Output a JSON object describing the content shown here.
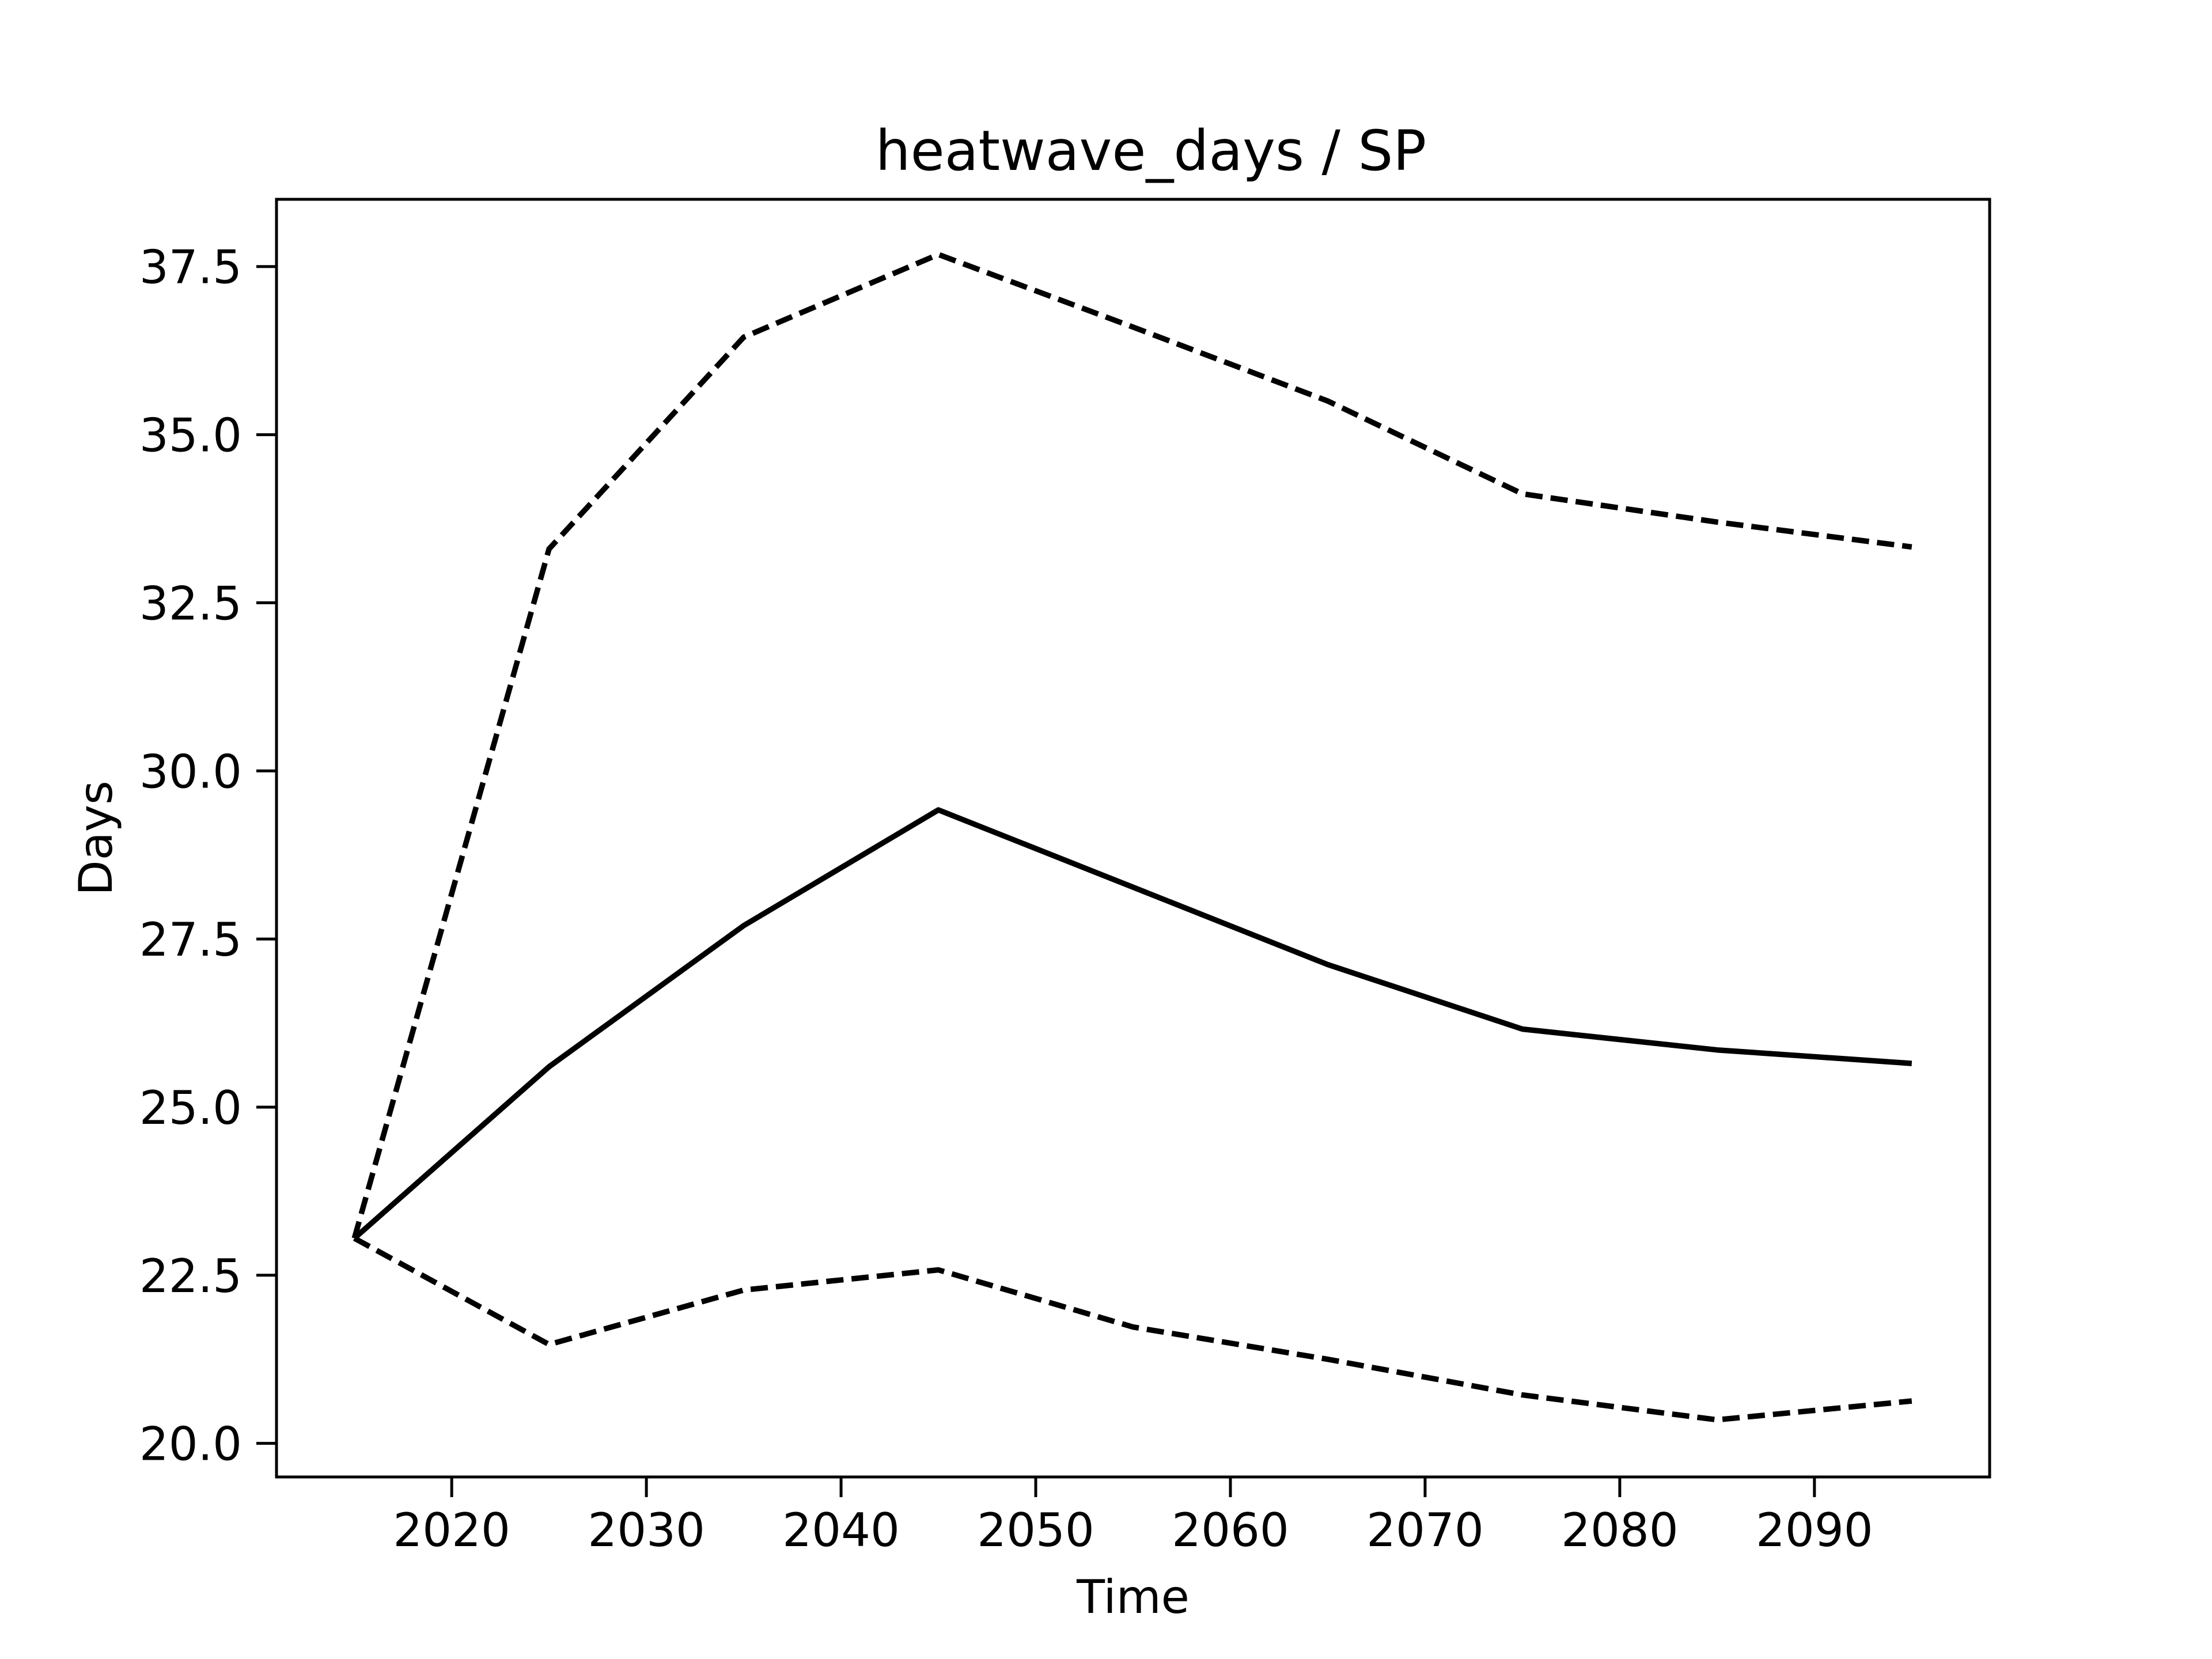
{
  "chart_data": {
    "type": "line",
    "title": "heatwave_days / SP",
    "xlabel": "Time",
    "ylabel": "Days",
    "xlim": [
      2011,
      2099
    ],
    "ylim": [
      19.5,
      38.5
    ],
    "x_ticks": [
      2020,
      2030,
      2040,
      2050,
      2060,
      2070,
      2080,
      2090
    ],
    "x_tick_labels": [
      "2020",
      "2030",
      "2040",
      "2050",
      "2060",
      "2070",
      "2080",
      "2090"
    ],
    "y_ticks": [
      20.0,
      22.5,
      25.0,
      27.5,
      30.0,
      32.5,
      35.0,
      37.5
    ],
    "y_tick_labels": [
      "20.0",
      "22.5",
      "25.0",
      "27.5",
      "30.0",
      "32.5",
      "35.0",
      "37.5"
    ],
    "grid": false,
    "x": [
      2015,
      2025,
      2035,
      2045,
      2055,
      2065,
      2075,
      2085,
      2095
    ],
    "series": [
      {
        "style": "solid",
        "color": "#000000",
        "values": [
          23.05,
          25.6,
          27.7,
          29.42,
          28.27,
          27.12,
          26.16,
          25.85,
          25.65
        ]
      },
      {
        "style": "dashed",
        "color": "#000000",
        "values": [
          23.05,
          33.3,
          36.45,
          37.68,
          36.6,
          35.5,
          34.12,
          33.7,
          33.33
        ]
      },
      {
        "style": "dashed",
        "color": "#000000",
        "values": [
          23.05,
          21.47,
          22.28,
          22.58,
          21.73,
          21.25,
          20.72,
          20.35,
          20.63
        ]
      }
    ]
  }
}
